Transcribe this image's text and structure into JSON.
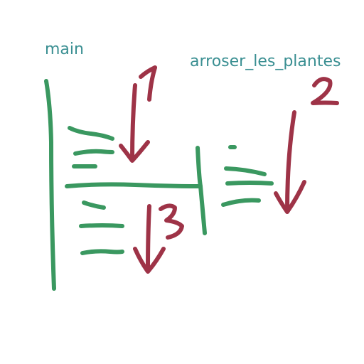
{
  "labels": {
    "main": "main",
    "function": "arroser_les_plantes"
  },
  "step_numbers": [
    "1",
    "2",
    "3"
  ],
  "colors": {
    "label_text": "#3a8f92",
    "code_lines": "#3a9860",
    "arrows": "#9e3347",
    "background": "#ffffff"
  }
}
